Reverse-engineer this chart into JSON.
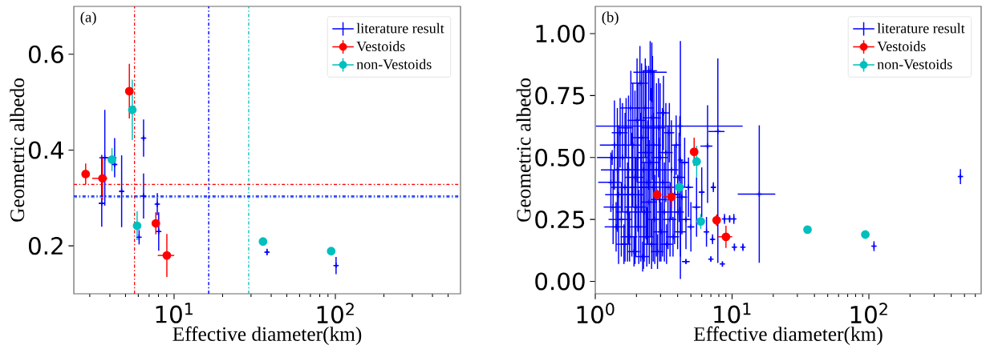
{
  "chart_data": [
    {
      "type": "scatter",
      "xlabel": "Effective diameter(km)",
      "ylabel": "Geometric albedo",
      "annotations": [
        "(a)"
      ],
      "log": "x",
      "legend": "top right",
      "xlim": [
        2.39,
        597
      ],
      "ylim": [
        0.1,
        0.7
      ],
      "xticks": [
        {
          "value": 10,
          "label": "10$^{1}$"
        },
        {
          "value": 100,
          "label": "10$^{2}$"
        }
      ],
      "yticks": [
        {
          "value": 0.2,
          "label": "0.2"
        },
        {
          "value": 0.4,
          "label": "0.4"
        },
        {
          "value": 0.6,
          "label": "0.6"
        }
      ],
      "series": [
        {
          "name": "literature result",
          "color": "#0000ff",
          "marker": "cross",
          "x": [
            3.72,
            3.56,
            4.28,
            4.73,
            5.47,
            6.47,
            6.47,
            6.07,
            7.87,
            8.03,
            37.7,
            101
          ],
          "values": [
            0.384,
            0.289,
            0.37,
            0.314,
            null,
            0.425,
            0.304,
            0.218,
            0.287,
            0.23,
            0.187,
            0.159
          ],
          "errors": [
            0.1,
            [
              0.24,
              0.39
            ],
            [
              0.343,
              0.425
            ],
            0.075,
            null,
            0.039,
            0.047,
            0.015,
            0.023,
            0.04,
            0.007,
            0.018
          ],
          "xerrors": [
            [
              3.44,
              4.39
            ],
            0.15,
            0.15,
            0.15,
            null,
            0.18,
            0.18,
            0.18,
            0.2,
            0.2,
            1.0,
            2.5
          ]
        },
        {
          "name": "Vestoids",
          "color": "#ff0000",
          "marker": "circle",
          "x": [
            2.83,
            3.6,
            5.28,
            7.71,
            9.02
          ],
          "values": [
            0.35,
            0.341,
            0.523,
            0.247,
            0.18
          ],
          "errors": [
            0.022,
            0.045,
            0.057,
            0.023,
            0.045
          ],
          "xerrors": [
            null,
            [
              3.11,
              3.85
            ],
            null,
            null,
            [
              7.92,
              10.02
            ]
          ]
        },
        {
          "name": "non-Vestoids",
          "color": "#00bfbf",
          "marker": "circle",
          "x": [
            4.12,
            5.51,
            5.9,
            35.6,
            94.2
          ],
          "values": [
            0.38,
            0.484,
            0.242,
            0.209,
            0.189
          ],
          "errors": [
            0.024,
            0.063,
            0.03,
            null,
            null
          ]
        }
      ],
      "ref_lines": [
        {
          "axis": "x",
          "value": 5.69,
          "color": "#ff0000",
          "line_style": "dashdot"
        },
        {
          "axis": "x",
          "value": 16.4,
          "color": "#0000ff",
          "line_style": "dashdot"
        },
        {
          "axis": "x",
          "value": 29.0,
          "color": "#00bfbf",
          "line_style": "dashdot"
        },
        {
          "axis": "y",
          "value": 0.328,
          "color": "#ff0000",
          "line_style": "dashdot"
        },
        {
          "axis": "y",
          "value": 0.304,
          "color": "#0000ff",
          "line_style": "dashdot"
        },
        {
          "axis": "y",
          "value": 0.301,
          "color": "#00bfbf",
          "line_style": "dashdot"
        }
      ]
    },
    {
      "type": "scatter",
      "xlabel": "Effective diameter(km)",
      "ylabel": "Geometric albedo",
      "annotations": [
        "(b)"
      ],
      "log": "x",
      "legend": "top right",
      "xlim": [
        1,
        662
      ],
      "ylim": [
        -0.05,
        1.11
      ],
      "xticks": [
        {
          "value": 1,
          "label": "10$^{0}$"
        },
        {
          "value": 10,
          "label": "10$^{1}$"
        },
        {
          "value": 100,
          "label": "10$^{2}$"
        }
      ],
      "yticks": [
        {
          "value": 0,
          "label": "0.00"
        },
        {
          "value": 0.25,
          "label": "0.25"
        },
        {
          "value": 0.5,
          "label": "0.50"
        },
        {
          "value": 0.75,
          "label": "0.75"
        },
        {
          "value": 1,
          "label": "1.00"
        }
      ],
      "series": [
        {
          "name": "literature result",
          "color": "#0000ff",
          "marker": "cross",
          "x": [
            1.3,
            1.35,
            1.38,
            1.42,
            1.45,
            1.48,
            1.52,
            1.55,
            1.58,
            1.62,
            1.65,
            1.68,
            1.72,
            1.75,
            1.78,
            1.82,
            1.85,
            1.88,
            1.92,
            1.95,
            1.98,
            2.02,
            2.05,
            2.08,
            2.12,
            2.15,
            2.18,
            2.22,
            2.25,
            2.28,
            2.32,
            2.35,
            2.38,
            2.42,
            2.45,
            2.48,
            2.52,
            2.55,
            2.58,
            2.62,
            2.65,
            2.68,
            2.72,
            2.8,
            2.85,
            2.9,
            2.95,
            2.98,
            3.02,
            3.1,
            3.15,
            3.2,
            3.28,
            3.32,
            3.4,
            3.48,
            3.52,
            3.6,
            3.7,
            3.8,
            3.9,
            4.0,
            4.1,
            4.2,
            4.3,
            4.5,
            4.6,
            4.8,
            5.0,
            1.33,
            2.59,
            4.15,
            4.19,
            7.87,
            6.62,
            15.8,
            467,
            109,
            10.4,
            12.0,
            8.8,
            9.6,
            10.3,
            5.5,
            6.0,
            6.5,
            7.3,
            7.0,
            8.5,
            4.6,
            7.2
          ],
          "values": [
            0.4,
            0.3,
            0.55,
            0.22,
            0.45,
            0.35,
            0.6,
            0.25,
            0.5,
            0.15,
            0.38,
            0.62,
            0.28,
            0.45,
            0.18,
            0.7,
            0.35,
            0.55,
            0.12,
            0.42,
            0.3,
            0.65,
            0.5,
            0.22,
            0.8,
            0.38,
            0.58,
            0.1,
            0.45,
            0.28,
            0.7,
            0.52,
            0.18,
            0.4,
            0.62,
            0.32,
            0.85,
            0.48,
            0.15,
            0.66,
            0.38,
            0.55,
            0.25,
            0.45,
            0.12,
            0.62,
            0.33,
            0.5,
            0.2,
            0.4,
            0.68,
            0.28,
            0.52,
            0.15,
            0.38,
            0.6,
            0.25,
            0.45,
            0.18,
            0.35,
            0.55,
            0.28,
            0.42,
            0.2,
            0.34,
            0.48,
            0.25,
            0.38,
            0.22,
            0.5,
            0.844,
            0.627,
            0.49,
            0.605,
            0.546,
            0.352,
            0.423,
            0.142,
            0.138,
            0.138,
            0.252,
            0.252,
            0.252,
            0.3,
            0.36,
            0.2,
            0.38,
            0.09,
            0.07,
            0.08,
            0.17
          ],
          "errors": [
            0.12,
            0.15,
            0.18,
            0.1,
            0.25,
            0.28,
            0.14,
            0.15,
            0.22,
            0.08,
            0.3,
            0.12,
            0.2,
            0.3,
            0.1,
            0.15,
            0.25,
            0.25,
            0.06,
            0.35,
            0.2,
            0.25,
            0.3,
            0.15,
            0.15,
            0.3,
            0.3,
            0.06,
            0.4,
            0.2,
            0.2,
            0.35,
            0.12,
            0.25,
            0.25,
            0.25,
            0.12,
            0.3,
            0.1,
            0.25,
            0.3,
            0.3,
            0.18,
            0.35,
            0.07,
            0.2,
            0.25,
            0.3,
            0.12,
            0.3,
            0.15,
            0.2,
            0.2,
            0.08,
            0.25,
            0.12,
            0.15,
            0.2,
            0.08,
            0.2,
            0.12,
            0.15,
            0.18,
            0.1,
            0.15,
            0.1,
            0.12,
            0.12,
            0.1,
            0.03,
            0.12,
            0.04,
            0.48,
            [
              0.074,
              0.9
            ],
            [
              0.317,
              0.711
            ],
            [
              0.075,
              0.63
            ],
            0.03,
            0.02,
            0.015,
            0.015,
            0.02,
            0.015,
            0.02,
            0.12,
            0.1,
            0.06,
            0.02,
            0.01,
            0.01,
            0.01,
            0.02
          ],
          "xerrors": [
            0.25,
            0.2,
            0.3,
            0.25,
            0.35,
            0.3,
            0.2,
            0.3,
            0.25,
            0.2,
            0.35,
            0.2,
            0.3,
            0.3,
            0.25,
            0.3,
            0.4,
            0.3,
            0.2,
            0.3,
            0.35,
            0.3,
            0.4,
            0.3,
            0.3,
            0.35,
            0.3,
            0.25,
            0.4,
            0.3,
            0.35,
            0.3,
            0.3,
            0.4,
            0.3,
            0.35,
            0.3,
            0.4,
            0.3,
            0.4,
            0.35,
            0.35,
            0.3,
            0.4,
            0.3,
            0.35,
            0.4,
            0.4,
            0.35,
            0.4,
            0.35,
            0.4,
            0.4,
            0.35,
            0.4,
            0.3,
            0.4,
            0.45,
            0.4,
            0.4,
            0.3,
            0.45,
            0.4,
            0.4,
            0.4,
            0.35,
            0.45,
            0.4,
            0.3,
            0.3,
            [
              1.9,
              3.33
            ],
            [
              1.01,
              11.95
            ],
            0.1,
            [
              6.71,
              8.8
            ],
            [
              5.87,
              7.19
            ],
            [
              11.0,
              20.7
            ],
            15,
            1.5,
            0.2,
            0.2,
            0.2,
            0.2,
            0.2,
            0.4,
            0.3,
            0.3,
            0.3,
            0.1,
            0.05,
            0.3,
            0.2
          ]
        },
        {
          "name": "Vestoids",
          "color": "#ff0000",
          "marker": "circle",
          "x": [
            2.83,
            3.6,
            5.28,
            7.71,
            9.02
          ],
          "values": [
            0.35,
            0.341,
            0.523,
            0.247,
            0.18
          ],
          "errors": [
            0.022,
            0.045,
            0.057,
            0.023,
            0.045
          ],
          "xerrors": [
            null,
            [
              3.11,
              3.85
            ],
            null,
            null,
            [
              7.92,
              10.02
            ]
          ]
        },
        {
          "name": "non-Vestoids",
          "color": "#00bfbf",
          "marker": "circle",
          "x": [
            4.12,
            5.51,
            5.9,
            35.6,
            94.2
          ],
          "values": [
            0.38,
            0.484,
            0.242,
            0.209,
            0.189
          ],
          "errors": [
            0.024,
            0.063,
            0.03,
            null,
            null
          ]
        }
      ]
    }
  ]
}
